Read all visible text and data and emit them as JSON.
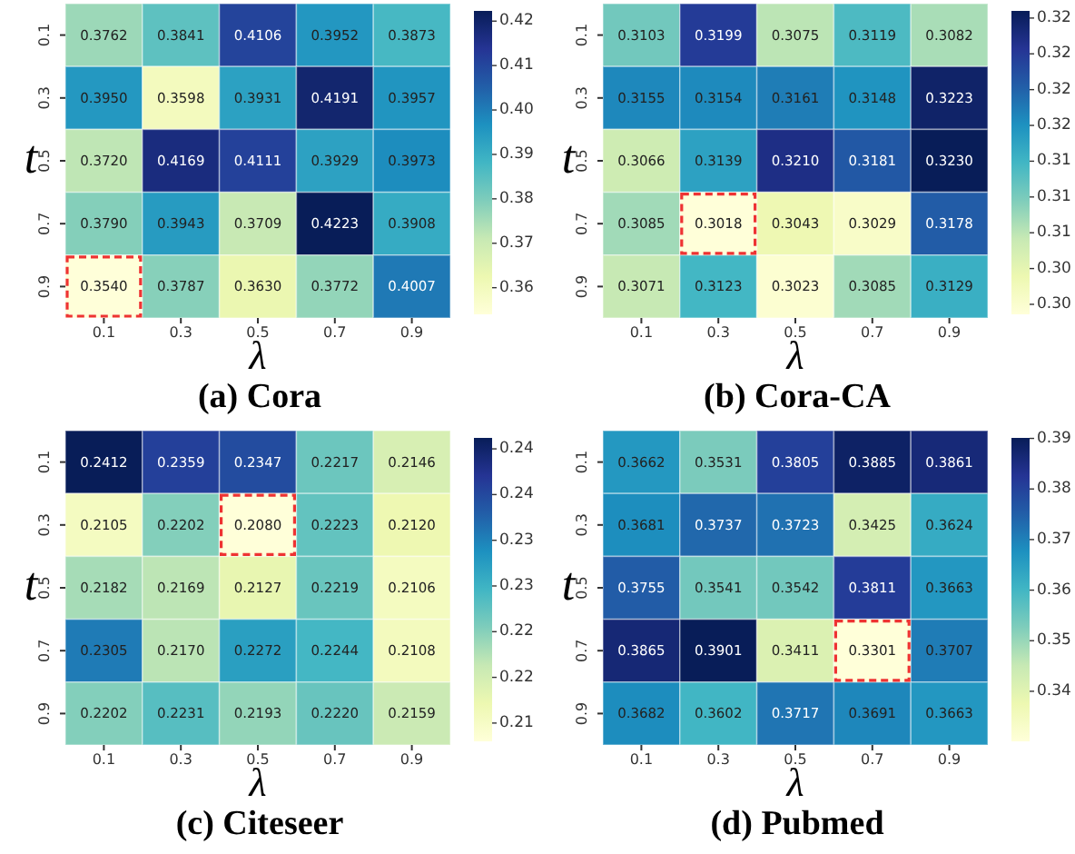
{
  "chart_data": [
    {
      "type": "heatmap",
      "title": "(a) Cora",
      "xlabel": "λ",
      "ylabel": "t",
      "categories": [
        "0.1",
        "0.3",
        "0.5",
        "0.7",
        "0.9"
      ],
      "y_categories": [
        "0.1",
        "0.3",
        "0.5",
        "0.7",
        "0.9"
      ],
      "cells": [
        [
          0.3762,
          0.3841,
          0.4106,
          0.3952,
          0.3873
        ],
        [
          0.395,
          0.3598,
          0.3931,
          0.4191,
          0.3957
        ],
        [
          0.372,
          0.4169,
          0.4111,
          0.3929,
          0.3973
        ],
        [
          0.379,
          0.3943,
          0.3709,
          0.4223,
          0.3908
        ],
        [
          0.354,
          0.3787,
          0.363,
          0.3772,
          0.4007
        ]
      ],
      "cell_labels": [
        [
          "0.3762",
          "0.3841",
          "0.4106",
          "0.3952",
          "0.3873"
        ],
        [
          "0.3950",
          "0.3598",
          "0.3931",
          "0.4191",
          "0.3957"
        ],
        [
          "0.3720",
          "0.4169",
          "0.4111",
          "0.3929",
          "0.3973"
        ],
        [
          "0.3790",
          "0.3943",
          "0.3709",
          "0.4223",
          "0.3908"
        ],
        [
          "0.3540",
          "0.3787",
          "0.3630",
          "0.3772",
          "0.4007"
        ]
      ],
      "clim": [
        0.354,
        0.4223
      ],
      "cticks": [
        0.36,
        0.37,
        0.38,
        0.39,
        {
          "value": 0.4,
          "label": "0.40"
        },
        0.41,
        0.42
      ]
    },
    {
      "type": "heatmap",
      "title": "(b) Cora-CA",
      "xlabel": "λ",
      "ylabel": "t",
      "categories": [
        "0.1",
        "0.3",
        "0.5",
        "0.7",
        "0.9"
      ],
      "y_categories": [
        "0.1",
        "0.3",
        "0.5",
        "0.7",
        "0.9"
      ],
      "cells": [
        [
          0.3103,
          0.3199,
          0.3075,
          0.3119,
          0.3082
        ],
        [
          0.3155,
          0.3154,
          0.3161,
          0.3148,
          0.3223
        ],
        [
          0.3066,
          0.3139,
          0.321,
          0.3181,
          0.323
        ],
        [
          0.3085,
          0.3018,
          0.3043,
          0.3029,
          0.3178
        ],
        [
          0.3071,
          0.3123,
          0.3023,
          0.3085,
          0.3129
        ]
      ],
      "cell_labels": [
        [
          "0.3103",
          "0.3199",
          "0.3075",
          "0.3119",
          "0.3082"
        ],
        [
          "0.3155",
          "0.3154",
          "0.3161",
          "0.3148",
          "0.3223"
        ],
        [
          "0.3066",
          "0.3139",
          "0.3210",
          "0.3181",
          "0.3230"
        ],
        [
          "0.3085",
          "0.3018",
          "0.3043",
          "0.3029",
          "0.3178"
        ],
        [
          "0.3071",
          "0.3123",
          "0.3023",
          "0.3085",
          "0.3129"
        ]
      ],
      "clim": [
        0.3018,
        0.323
      ],
      "cticks": [
        {
          "value": 0.3025,
          "label": "0.30"
        },
        {
          "value": 0.305,
          "label": "0.30"
        },
        {
          "value": 0.3075,
          "label": "0.31"
        },
        {
          "value": 0.31,
          "label": "0.31"
        },
        {
          "value": 0.3125,
          "label": "0.31"
        },
        {
          "value": 0.315,
          "label": "0.32"
        },
        {
          "value": 0.3175,
          "label": "0.32"
        },
        {
          "value": 0.32,
          "label": "0.32"
        },
        {
          "value": 0.3225,
          "label": "0.32"
        }
      ]
    },
    {
      "type": "heatmap",
      "title": "(c) Citeseer",
      "xlabel": "λ",
      "ylabel": "t",
      "categories": [
        "0.1",
        "0.3",
        "0.5",
        "0.7",
        "0.9"
      ],
      "y_categories": [
        "0.1",
        "0.3",
        "0.5",
        "0.7",
        "0.9"
      ],
      "cells": [
        [
          0.2412,
          0.2359,
          0.2347,
          0.2217,
          0.2146
        ],
        [
          0.2105,
          0.2202,
          0.208,
          0.2223,
          0.212
        ],
        [
          0.2182,
          0.2169,
          0.2127,
          0.2219,
          0.2106
        ],
        [
          0.2305,
          0.217,
          0.2272,
          0.2244,
          0.2108
        ],
        [
          0.2202,
          0.2231,
          0.2193,
          0.222,
          0.2159
        ]
      ],
      "cell_labels": [
        [
          "0.2412",
          "0.2359",
          "0.2347",
          "0.2217",
          "0.2146"
        ],
        [
          "0.2105",
          "0.2202",
          "0.2080",
          "0.2223",
          "0.2120"
        ],
        [
          "0.2182",
          "0.2169",
          "0.2127",
          "0.2219",
          "0.2106"
        ],
        [
          "0.2305",
          "0.2170",
          "0.2272",
          "0.2244",
          "0.2108"
        ],
        [
          "0.2202",
          "0.2231",
          "0.2193",
          "0.2220",
          "0.2159"
        ]
      ],
      "clim": [
        0.208,
        0.2412
      ],
      "cticks": [
        {
          "value": 0.21,
          "label": "0.21"
        },
        {
          "value": 0.215,
          "label": "0.22"
        },
        {
          "value": 0.22,
          "label": "0.22"
        },
        {
          "value": 0.225,
          "label": "0.23"
        },
        {
          "value": 0.23,
          "label": "0.23"
        },
        {
          "value": 0.235,
          "label": "0.24"
        },
        {
          "value": 0.24,
          "label": "0.24"
        }
      ]
    },
    {
      "type": "heatmap",
      "title": "(d) Pubmed",
      "xlabel": "λ",
      "ylabel": "t",
      "categories": [
        "0.1",
        "0.3",
        "0.5",
        "0.7",
        "0.9"
      ],
      "y_categories": [
        "0.1",
        "0.3",
        "0.5",
        "0.7",
        "0.9"
      ],
      "cells": [
        [
          0.3662,
          0.3531,
          0.3805,
          0.3885,
          0.3861
        ],
        [
          0.3681,
          0.3737,
          0.3723,
          0.3425,
          0.3624
        ],
        [
          0.3755,
          0.3541,
          0.3542,
          0.3811,
          0.3663
        ],
        [
          0.3865,
          0.3901,
          0.3411,
          0.3301,
          0.3707
        ],
        [
          0.3682,
          0.3602,
          0.3717,
          0.3691,
          0.3663
        ]
      ],
      "cell_labels": [
        [
          "0.3662",
          "0.3531",
          "0.3805",
          "0.3885",
          "0.3861"
        ],
        [
          "0.3681",
          "0.3737",
          "0.3723",
          "0.3425",
          "0.3624"
        ],
        [
          "0.3755",
          "0.3541",
          "0.3542",
          "0.3811",
          "0.3663"
        ],
        [
          "0.3865",
          "0.3901",
          "0.3411",
          "0.3301",
          "0.3707"
        ],
        [
          "0.3682",
          "0.3602",
          "0.3717",
          "0.3691",
          "0.3663"
        ]
      ],
      "clim": [
        0.3301,
        0.3901
      ],
      "cticks": [
        0.34,
        0.35,
        0.36,
        0.37,
        0.38,
        0.39
      ]
    }
  ]
}
